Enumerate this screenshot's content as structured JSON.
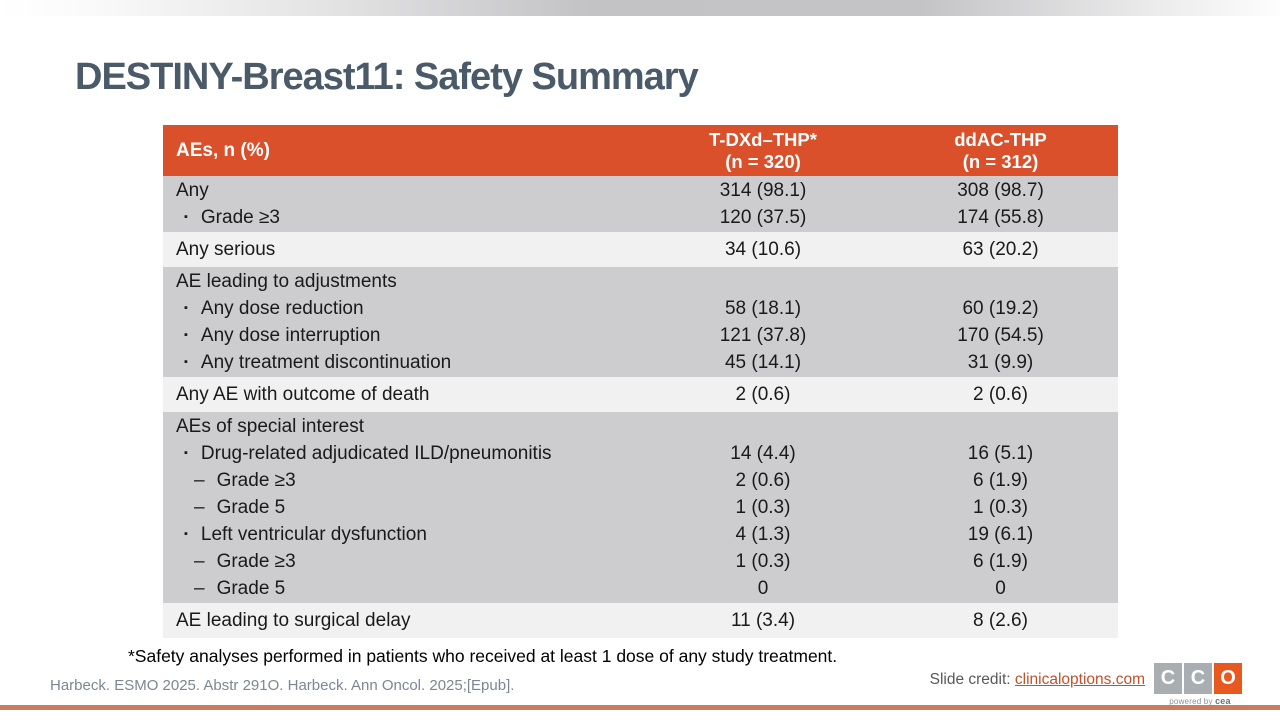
{
  "slide": {
    "title": "DESTINY-Breast11: Safety Summary",
    "footnote": "*Safety analyses performed in patients who received at least 1 dose of any study treatment.",
    "citation": "Harbeck. ESMO 2025. Abstr 291O. Harbeck. Ann Oncol. 2025;[Epub].",
    "credit_label": "Slide credit: ",
    "credit_link": "clinicaloptions.com",
    "logo": {
      "letters": [
        "C",
        "C",
        "O"
      ],
      "tagline_prefix": "powered by",
      "tagline_brand": "cea"
    }
  },
  "colors": {
    "header_bg": "#D9502A",
    "row_gray": "#CDCDD0",
    "row_light": "#F1F1F2",
    "title": "#4A5A69",
    "link": "#C0522B",
    "citation": "#7B8794",
    "credit": "#595959",
    "bottom_bar": "#C87C59",
    "logo_orange": "#E7591F",
    "logo_gray": "#A9AEB3"
  },
  "table": {
    "bullets": {
      "square": "▪",
      "dash": "–"
    },
    "columns": [
      {
        "label": "AEs, n (%)"
      },
      {
        "line1": "T-DXd–THP*",
        "line2": "(n = 320)"
      },
      {
        "line1": "ddAC-THP",
        "line2": "(n = 312)"
      }
    ],
    "sections": [
      {
        "shade": "gray",
        "rows": [
          {
            "indent": 0,
            "label": "Any",
            "v1": "314 (98.1)",
            "v2": "308 (98.7)"
          },
          {
            "indent": 1,
            "bullet": "square",
            "label": "Grade ≥3",
            "v1": "120 (37.5)",
            "v2": "174 (55.8)"
          }
        ]
      },
      {
        "shade": "light",
        "rows": [
          {
            "indent": 0,
            "label": "Any serious",
            "v1": "34 (10.6)",
            "v2": "63 (20.2)"
          }
        ]
      },
      {
        "shade": "gray",
        "rows": [
          {
            "indent": 0,
            "label": "AE leading to adjustments",
            "v1": "",
            "v2": ""
          },
          {
            "indent": 1,
            "bullet": "square",
            "label": "Any dose reduction",
            "v1": "58 (18.1)",
            "v2": "60 (19.2)"
          },
          {
            "indent": 1,
            "bullet": "square",
            "label": "Any dose interruption",
            "v1": "121 (37.8)",
            "v2": "170 (54.5)"
          },
          {
            "indent": 1,
            "bullet": "square",
            "label": "Any treatment discontinuation",
            "v1": "45 (14.1)",
            "v2": "31 (9.9)"
          }
        ]
      },
      {
        "shade": "light",
        "rows": [
          {
            "indent": 0,
            "label": "Any AE with outcome of death",
            "v1": "2 (0.6)",
            "v2": "2 (0.6)"
          }
        ]
      },
      {
        "shade": "gray",
        "rows": [
          {
            "indent": 0,
            "label": "AEs of special interest",
            "v1": "",
            "v2": ""
          },
          {
            "indent": 1,
            "bullet": "square",
            "label": "Drug-related adjudicated ILD/pneumonitis",
            "v1": "14 (4.4)",
            "v2": "16 (5.1)"
          },
          {
            "indent": 2,
            "bullet": "dash",
            "label": "Grade ≥3",
            "v1": "2 (0.6)",
            "v2": "6 (1.9)"
          },
          {
            "indent": 2,
            "bullet": "dash",
            "label": "Grade 5",
            "v1": "1 (0.3)",
            "v2": "1 (0.3)"
          },
          {
            "indent": 1,
            "bullet": "square",
            "label": "Left ventricular dysfunction",
            "v1": "4 (1.3)",
            "v2": "19 (6.1)"
          },
          {
            "indent": 2,
            "bullet": "dash",
            "label": "Grade ≥3",
            "v1": "1 (0.3)",
            "v2": "6 (1.9)"
          },
          {
            "indent": 2,
            "bullet": "dash",
            "label": "Grade 5",
            "v1": "0",
            "v2": "0"
          }
        ]
      },
      {
        "shade": "light",
        "rows": [
          {
            "indent": 0,
            "label": "AE leading to surgical delay",
            "v1": "11 (3.4)",
            "v2": "8 (2.6)"
          }
        ]
      }
    ]
  }
}
